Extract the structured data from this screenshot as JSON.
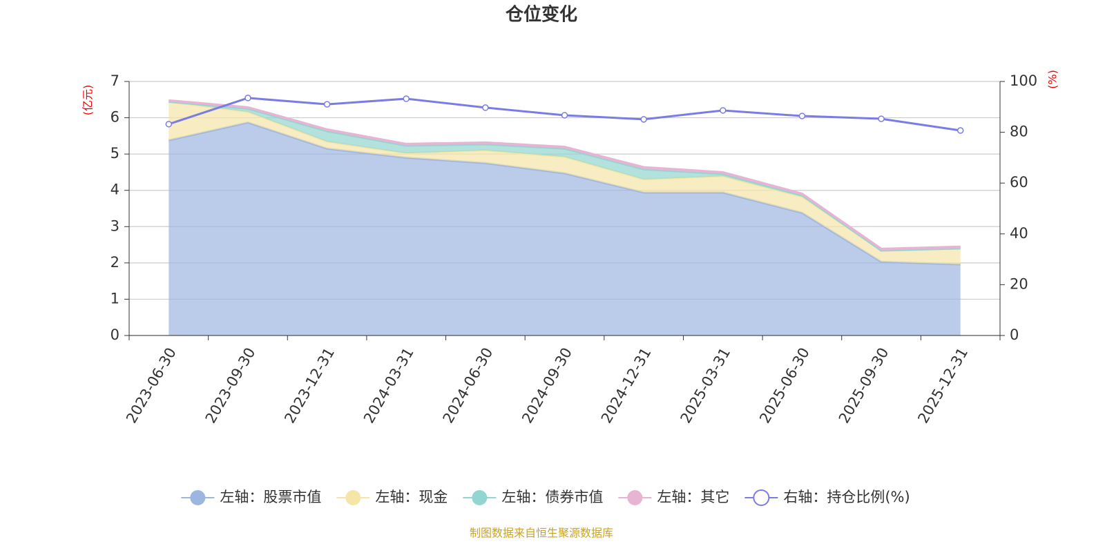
{
  "chart_data": {
    "type": "area",
    "stacked": true,
    "title": "仓位变化",
    "y_label": "(亿元)",
    "y2_label": "(%)",
    "source": "制图数据来自恒生聚源数据库",
    "categories": [
      "2023-06-30",
      "2023-09-30",
      "2023-12-31",
      "2024-03-31",
      "2024-06-30",
      "2024-09-30",
      "2024-12-31",
      "2025-03-31",
      "2025-06-30",
      "2025-09-30",
      "2025-12-31"
    ],
    "series": [
      {
        "name": "左轴：股票市值",
        "type": "area",
        "axis": "y",
        "color": "#9db6e0",
        "values": [
          5.38,
          5.87,
          5.15,
          4.9,
          4.75,
          4.47,
          3.94,
          3.94,
          3.38,
          2.03,
          1.96
        ]
      },
      {
        "name": "左轴：现金",
        "type": "area",
        "axis": "y",
        "color": "#f5e6a8",
        "values": [
          1.06,
          0.29,
          0.19,
          0.12,
          0.35,
          0.45,
          0.36,
          0.45,
          0.44,
          0.31,
          0.44
        ]
      },
      {
        "name": "左轴：债券市值",
        "type": "area",
        "axis": "y",
        "color": "#93d5d0",
        "values": [
          0,
          0.09,
          0.29,
          0.21,
          0.17,
          0.23,
          0.28,
          0.06,
          0.04,
          0,
          0
        ]
      },
      {
        "name": "左轴：其它",
        "type": "area",
        "axis": "y",
        "color": "#e8b4d4",
        "values": [
          0.04,
          0.04,
          0.05,
          0.05,
          0.05,
          0.05,
          0.06,
          0.05,
          0.05,
          0.05,
          0.05
        ]
      },
      {
        "name": "右轴：持仓比例(%)",
        "type": "line",
        "axis": "y2",
        "color": "#7b7be6",
        "values": [
          83.2,
          93.5,
          91.0,
          93.2,
          89.7,
          86.7,
          85.1,
          88.6,
          86.4,
          85.3,
          80.7
        ]
      }
    ],
    "ylim": [
      0,
      7
    ],
    "yticks": [
      0,
      1,
      2,
      3,
      4,
      5,
      6,
      7
    ],
    "y2lim": [
      0,
      100
    ],
    "y2ticks": [
      0,
      20,
      40,
      60,
      80,
      100
    ],
    "grid": true
  }
}
